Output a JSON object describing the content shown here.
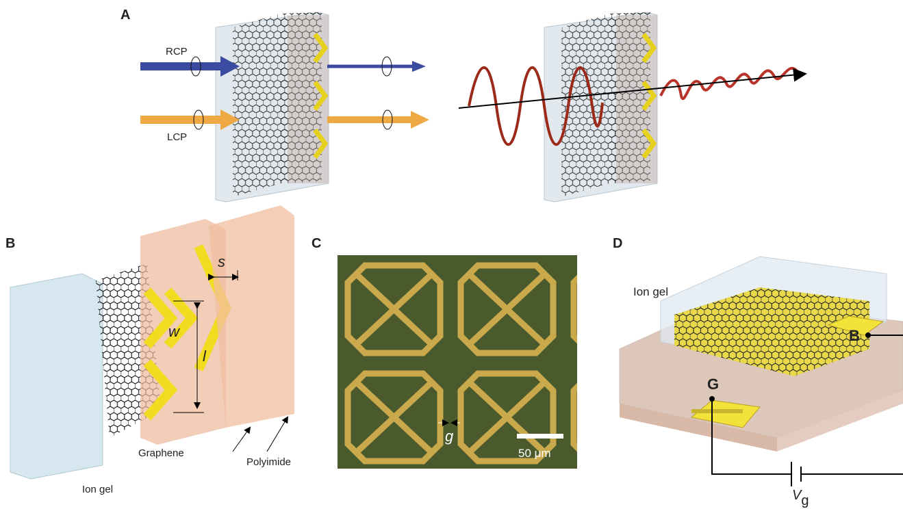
{
  "panel_a": {
    "label": "A",
    "rcp": "RCP",
    "lcp": "LCP"
  },
  "panel_b": {
    "label": "B",
    "dim_s": "s",
    "dim_w": "w",
    "dim_l": "l",
    "graphene": "Graphene",
    "ion_gel": "Ion gel",
    "polyimide": "Polyimide"
  },
  "panel_c": {
    "label": "C",
    "gap": "g",
    "scale_bar": "50 μm"
  },
  "panel_d": {
    "label": "D",
    "ion_gel": "Ion gel",
    "electrode_b": "B",
    "electrode_g": "G",
    "voltage": "V",
    "voltage_sub": "g"
  }
}
